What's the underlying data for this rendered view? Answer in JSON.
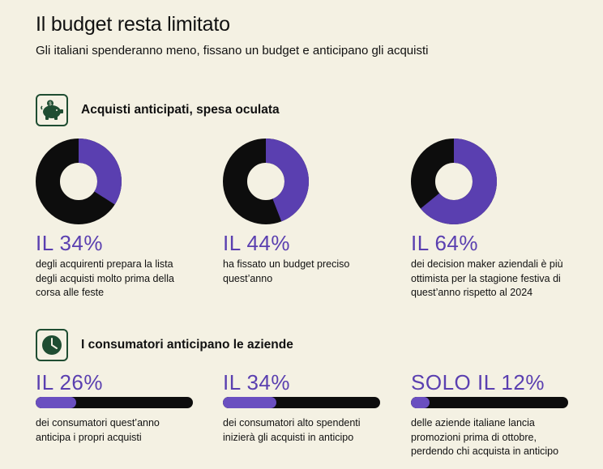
{
  "header": {
    "title": "Il budget resta limitato",
    "subtitle": "Gli italiani spenderanno meno, fissano un budget e anticipano gli acquisti"
  },
  "sections": [
    {
      "label": "Acquisti anticipati, spesa oculata",
      "icon": "piggy-bank-icon"
    },
    {
      "label": "I consumatori anticipano le aziende",
      "icon": "clock-icon"
    }
  ],
  "colors": {
    "accent": "#5a3fb0",
    "dark": "#0d0d0d",
    "icon_green": "#1f4d32",
    "background": "#f4f1e3"
  },
  "chart_data": [
    {
      "type": "pie",
      "style": "donut",
      "items": [
        {
          "headline": "IL 34%",
          "value": 34,
          "description": "degli acquirenti prepara la lista degli acquisti molto prima della corsa alle feste"
        },
        {
          "headline": "IL 44%",
          "value": 44,
          "description": "ha fissato un budget preciso quest’anno"
        },
        {
          "headline": "IL 64%",
          "value": 64,
          "description": "dei decision maker aziendali è più ottimista per la stagione festiva di quest’anno rispetto al 2024"
        }
      ]
    },
    {
      "type": "bar",
      "style": "progress",
      "items": [
        {
          "headline": "IL 26%",
          "value": 26,
          "description": "dei consumatori quest’anno anticipa i propri acquisti"
        },
        {
          "headline": "IL 34%",
          "value": 34,
          "description": "dei consumatori alto spendenti inizierà gli acquisti in anticipo"
        },
        {
          "headline": "SOLO IL 12%",
          "value": 12,
          "description": "delle aziende italiane lancia promozioni prima di ottobre, perdendo chi acquista in anticipo"
        }
      ]
    }
  ]
}
